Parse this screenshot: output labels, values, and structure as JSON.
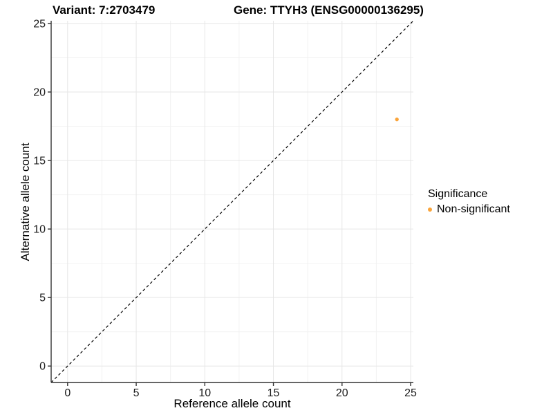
{
  "chart_data": {
    "type": "scatter",
    "titles": {
      "left": "Variant: 7:2703479",
      "right": "Gene: TTYH3 (ENSG00000136295)"
    },
    "xlabel": "Reference allele count",
    "ylabel": "Alternative allele count",
    "xlim": [
      -1.2,
      25.2
    ],
    "ylim": [
      -1.2,
      25.2
    ],
    "xticks": [
      0,
      5,
      10,
      15,
      20,
      25
    ],
    "yticks": [
      0,
      5,
      10,
      15,
      20,
      25
    ],
    "xticks_minor": [
      2.5,
      7.5,
      12.5,
      17.5,
      22.5
    ],
    "yticks_minor": [
      2.5,
      7.5,
      12.5,
      17.5,
      22.5
    ],
    "grid": true,
    "reference_line": {
      "type": "identity",
      "style": "dashed",
      "color": "#000000"
    },
    "series": [
      {
        "name": "Non-significant",
        "color": "#FAA43A",
        "point_radius": 2.7,
        "points": [
          {
            "x": 24,
            "y": 18
          }
        ]
      }
    ],
    "legend": {
      "title": "Significance",
      "position": "right",
      "items": [
        {
          "label": "Non-significant",
          "color": "#FAA43A"
        }
      ]
    },
    "colors": {
      "background": "#FFFFFF",
      "axis": "#333333",
      "tick": "#333333",
      "tick_text": "#1A1A1A",
      "grid_major": "#E6E6E6",
      "grid_minor": "#F2F2F2"
    }
  }
}
